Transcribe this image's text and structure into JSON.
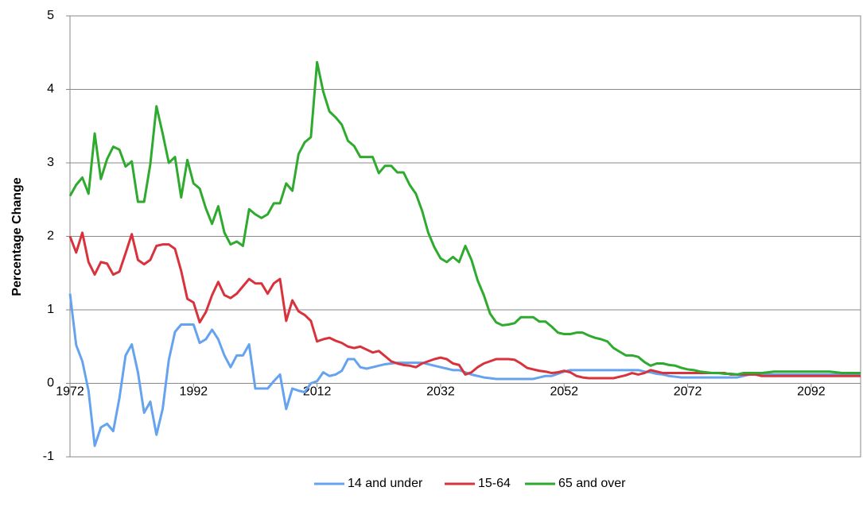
{
  "chart_data": {
    "type": "line",
    "y_label": "Percentage Change",
    "x": [
      1972,
      1973,
      1974,
      1975,
      1976,
      1977,
      1978,
      1979,
      1980,
      1981,
      1982,
      1983,
      1984,
      1985,
      1986,
      1987,
      1988,
      1989,
      1990,
      1991,
      1992,
      1993,
      1994,
      1995,
      1996,
      1997,
      1998,
      1999,
      2000,
      2001,
      2002,
      2003,
      2004,
      2005,
      2006,
      2007,
      2008,
      2009,
      2010,
      2011,
      2012,
      2013,
      2014,
      2015,
      2016,
      2017,
      2018,
      2019,
      2020,
      2021,
      2022,
      2023,
      2024,
      2025,
      2026,
      2027,
      2028,
      2029,
      2030,
      2031,
      2032,
      2033,
      2034,
      2035,
      2036,
      2037,
      2038,
      2039,
      2040,
      2041,
      2042,
      2043,
      2044,
      2045,
      2046,
      2047,
      2048,
      2049,
      2050,
      2051,
      2052,
      2053,
      2054,
      2055,
      2056,
      2057,
      2058,
      2059,
      2060,
      2061,
      2062,
      2063,
      2064,
      2065,
      2066,
      2067,
      2068,
      2069,
      2070,
      2071,
      2072,
      2073,
      2074,
      2075,
      2076,
      2077,
      2078,
      2079,
      2080,
      2081,
      2082,
      2083,
      2084,
      2085,
      2086,
      2087,
      2088,
      2089,
      2090,
      2091,
      2092,
      2093,
      2094,
      2095,
      2096,
      2097,
      2098,
      2099,
      2100
    ],
    "series": [
      {
        "name": "14 and under",
        "color": "#66a3ee",
        "values": [
          1.22,
          0.52,
          0.3,
          -0.1,
          -0.85,
          -0.6,
          -0.55,
          -0.65,
          -0.2,
          0.38,
          0.53,
          0.15,
          -0.4,
          -0.25,
          -0.7,
          -0.35,
          0.32,
          0.7,
          0.8,
          0.8,
          0.8,
          0.55,
          0.6,
          0.73,
          0.6,
          0.38,
          0.22,
          0.38,
          0.38,
          0.53,
          -0.07,
          -0.07,
          -0.07,
          0.03,
          0.12,
          -0.35,
          -0.07,
          -0.1,
          -0.12,
          0.0,
          0.03,
          0.15,
          0.1,
          0.12,
          0.17,
          0.33,
          0.33,
          0.22,
          0.2,
          0.22,
          0.24,
          0.26,
          0.27,
          0.28,
          0.28,
          0.28,
          0.28,
          0.28,
          0.26,
          0.24,
          0.22,
          0.2,
          0.18,
          0.18,
          0.15,
          0.12,
          0.1,
          0.08,
          0.07,
          0.06,
          0.06,
          0.06,
          0.06,
          0.06,
          0.06,
          0.06,
          0.08,
          0.1,
          0.1,
          0.13,
          0.16,
          0.18,
          0.18,
          0.18,
          0.18,
          0.18,
          0.18,
          0.18,
          0.18,
          0.18,
          0.18,
          0.18,
          0.18,
          0.16,
          0.15,
          0.13,
          0.12,
          0.1,
          0.09,
          0.08,
          0.08,
          0.08,
          0.08,
          0.08,
          0.08,
          0.08,
          0.08,
          0.08,
          0.08,
          0.1,
          0.12,
          0.12,
          0.12,
          0.12,
          0.12,
          0.12,
          0.12,
          0.12,
          0.12,
          0.12,
          0.12,
          0.12,
          0.12,
          0.12,
          0.12,
          0.12,
          0.12,
          0.12,
          0.12
        ]
      },
      {
        "name": "15-64",
        "color": "#d8333c",
        "values": [
          2.0,
          1.78,
          2.05,
          1.65,
          1.48,
          1.65,
          1.63,
          1.48,
          1.52,
          1.77,
          2.03,
          1.68,
          1.62,
          1.68,
          1.87,
          1.89,
          1.89,
          1.83,
          1.53,
          1.15,
          1.1,
          0.83,
          0.97,
          1.2,
          1.38,
          1.2,
          1.16,
          1.22,
          1.32,
          1.42,
          1.36,
          1.36,
          1.22,
          1.36,
          1.42,
          0.85,
          1.13,
          0.98,
          0.93,
          0.85,
          0.57,
          0.6,
          0.62,
          0.58,
          0.55,
          0.5,
          0.48,
          0.5,
          0.46,
          0.42,
          0.44,
          0.37,
          0.3,
          0.27,
          0.25,
          0.24,
          0.22,
          0.27,
          0.3,
          0.33,
          0.35,
          0.33,
          0.27,
          0.25,
          0.12,
          0.15,
          0.22,
          0.27,
          0.3,
          0.33,
          0.33,
          0.33,
          0.32,
          0.27,
          0.21,
          0.19,
          0.17,
          0.16,
          0.14,
          0.15,
          0.17,
          0.15,
          0.1,
          0.08,
          0.07,
          0.07,
          0.07,
          0.07,
          0.07,
          0.09,
          0.11,
          0.14,
          0.12,
          0.14,
          0.18,
          0.16,
          0.14,
          0.14,
          0.14,
          0.14,
          0.14,
          0.14,
          0.14,
          0.14,
          0.14,
          0.14,
          0.14,
          0.12,
          0.12,
          0.12,
          0.12,
          0.12,
          0.1,
          0.1,
          0.1,
          0.1,
          0.1,
          0.1,
          0.1,
          0.1,
          0.1,
          0.1,
          0.1,
          0.1,
          0.1,
          0.1,
          0.1,
          0.1,
          0.1
        ]
      },
      {
        "name": "65 and over",
        "color": "#2eaa2e",
        "values": [
          2.55,
          2.7,
          2.8,
          2.58,
          3.4,
          2.78,
          3.05,
          3.22,
          3.18,
          2.95,
          3.02,
          2.47,
          2.47,
          2.98,
          3.77,
          3.4,
          3.0,
          3.08,
          2.53,
          3.04,
          2.72,
          2.65,
          2.38,
          2.17,
          2.41,
          2.05,
          1.89,
          1.93,
          1.87,
          2.37,
          2.3,
          2.25,
          2.3,
          2.45,
          2.45,
          2.72,
          2.62,
          3.12,
          3.28,
          3.35,
          4.37,
          3.97,
          3.7,
          3.62,
          3.52,
          3.3,
          3.23,
          3.08,
          3.08,
          3.08,
          2.86,
          2.96,
          2.96,
          2.87,
          2.87,
          2.7,
          2.58,
          2.35,
          2.05,
          1.85,
          1.7,
          1.65,
          1.72,
          1.65,
          1.87,
          1.68,
          1.4,
          1.2,
          0.95,
          0.83,
          0.79,
          0.8,
          0.82,
          0.9,
          0.9,
          0.9,
          0.84,
          0.84,
          0.77,
          0.69,
          0.67,
          0.67,
          0.69,
          0.69,
          0.65,
          0.62,
          0.6,
          0.57,
          0.48,
          0.43,
          0.38,
          0.38,
          0.36,
          0.29,
          0.24,
          0.27,
          0.27,
          0.25,
          0.24,
          0.21,
          0.19,
          0.18,
          0.16,
          0.15,
          0.14,
          0.14,
          0.13,
          0.13,
          0.12,
          0.14,
          0.14,
          0.14,
          0.14,
          0.15,
          0.16,
          0.16,
          0.16,
          0.16,
          0.16,
          0.16,
          0.16,
          0.16,
          0.16,
          0.16,
          0.15,
          0.14,
          0.14,
          0.14,
          0.14
        ]
      }
    ],
    "xlim": [
      1972,
      2100
    ],
    "xticks": [
      1972,
      1992,
      2012,
      2032,
      2052,
      2072,
      2092
    ],
    "ylim": [
      -1,
      5
    ],
    "yticks": [
      -1,
      0,
      1,
      2,
      3,
      4,
      5
    ],
    "grid": true,
    "legend": "bottom"
  }
}
